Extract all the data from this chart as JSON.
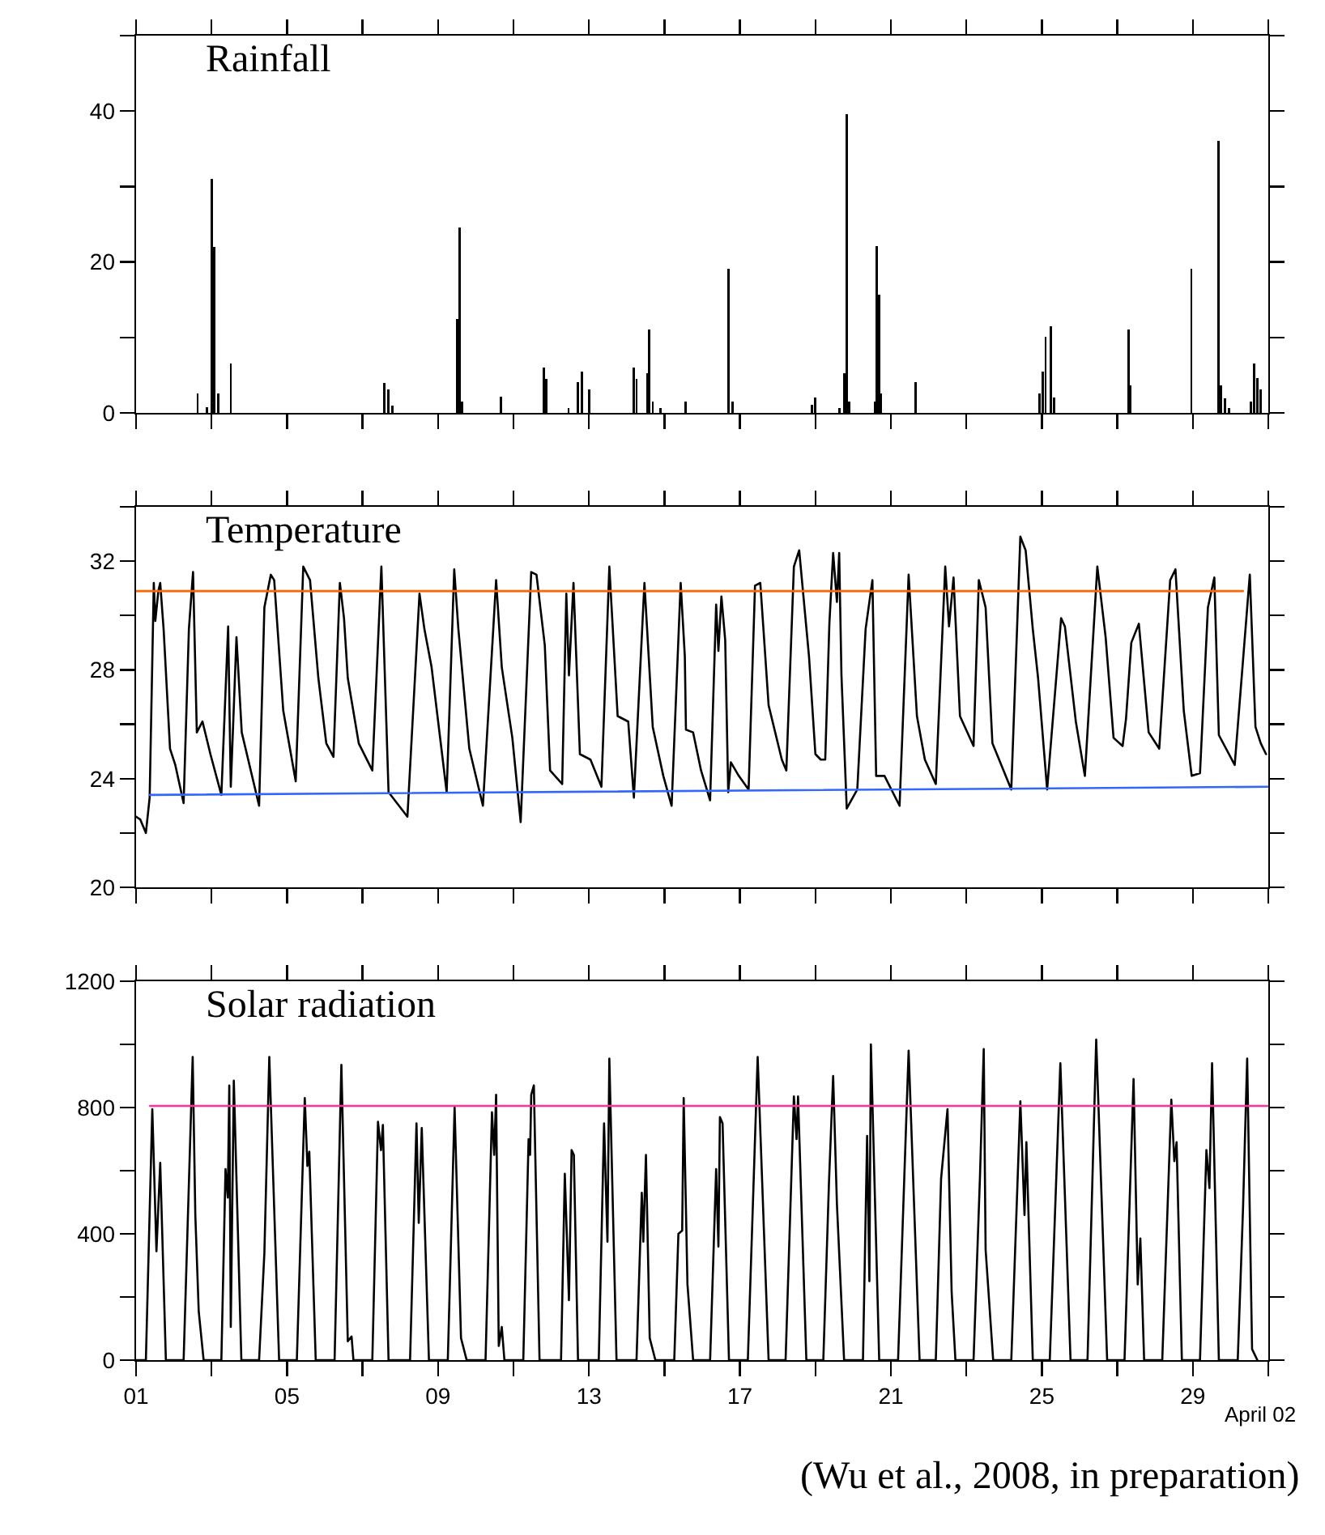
{
  "chart_data": [
    {
      "type": "bar",
      "title": "Rainfall",
      "color": "#000000",
      "x": [
        2.63,
        2.87,
        3.0,
        3.07,
        3.17,
        3.51,
        7.57,
        7.69,
        7.8,
        9.51,
        9.57,
        9.64,
        10.66,
        11.8,
        11.87,
        12.46,
        12.71,
        12.81,
        13.01,
        14.19,
        14.26,
        14.54,
        14.6,
        14.69,
        14.89,
        15.56,
        16.69,
        16.8,
        18.91,
        18.99,
        19.63,
        19.77,
        19.83,
        19.9,
        20.57,
        20.63,
        20.69,
        20.74,
        21.66,
        24.93,
        25.03,
        25.1,
        25.23,
        25.33,
        27.29,
        27.34,
        28.96,
        29.68,
        29.75,
        29.85,
        29.96,
        30.53,
        30.63,
        30.71,
        30.8
      ],
      "values": [
        2.6,
        0.7,
        31.0,
        22.0,
        2.6,
        6.5,
        4.0,
        3.1,
        1.0,
        12.5,
        24.6,
        1.5,
        2.1,
        6.0,
        4.5,
        0.6,
        4.1,
        5.5,
        3.1,
        6.0,
        4.5,
        5.3,
        11.1,
        1.5,
        0.6,
        1.5,
        19.1,
        1.5,
        1.1,
        2.0,
        0.6,
        5.3,
        39.6,
        1.5,
        1.5,
        22.1,
        15.7,
        2.6,
        4.1,
        2.6,
        5.5,
        10.1,
        11.5,
        2.0,
        11.1,
        3.6,
        19.1,
        36.0,
        3.6,
        1.9,
        0.6,
        1.5,
        6.5,
        4.6,
        3.1
      ],
      "xlim": [
        1,
        31
      ],
      "xticks": [
        {
          "value": 1,
          "label": null
        },
        {
          "value": 3,
          "label": null
        },
        {
          "value": 5,
          "label": null
        },
        {
          "value": 7,
          "label": null
        },
        {
          "value": 9,
          "label": null
        },
        {
          "value": 11,
          "label": null
        },
        {
          "value": 13,
          "label": null
        },
        {
          "value": 15,
          "label": null
        },
        {
          "value": 17,
          "label": null
        },
        {
          "value": 19,
          "label": null
        },
        {
          "value": 21,
          "label": null
        },
        {
          "value": 23,
          "label": null
        },
        {
          "value": 25,
          "label": null
        },
        {
          "value": 27,
          "label": null
        },
        {
          "value": 29,
          "label": null
        },
        {
          "value": 31,
          "label": null
        }
      ],
      "ylim": [
        0,
        50
      ],
      "yticks": [
        0,
        {
          "value": 10,
          "label": null
        },
        20,
        {
          "value": 30,
          "label": null
        },
        40,
        {
          "value": 50,
          "label": null
        }
      ],
      "tick_labels": "y"
    },
    {
      "type": "line",
      "title": "Temperature",
      "series": [
        {
          "color": "#000000",
          "x": [
            1.0,
            1.11,
            1.26,
            1.36,
            1.47,
            1.51,
            1.59,
            1.64,
            1.73,
            1.9,
            2.04,
            2.26,
            2.4,
            2.51,
            2.61,
            2.76,
            2.97,
            3.26,
            3.44,
            3.51,
            3.66,
            3.8,
            4.26,
            4.4,
            4.57,
            4.66,
            4.9,
            5.23,
            5.43,
            5.61,
            5.83,
            6.04,
            6.23,
            6.4,
            6.51,
            6.61,
            6.9,
            7.26,
            7.5,
            7.69,
            8.19,
            8.51,
            8.64,
            8.83,
            9.23,
            9.43,
            9.54,
            9.83,
            10.19,
            10.54,
            10.69,
            10.97,
            11.19,
            11.47,
            11.61,
            11.83,
            11.97,
            12.29,
            12.4,
            12.47,
            12.59,
            12.76,
            13.04,
            13.33,
            13.54,
            13.76,
            14.04,
            14.19,
            14.47,
            14.69,
            14.97,
            15.19,
            15.43,
            15.54,
            15.57,
            15.76,
            15.97,
            16.21,
            16.37,
            16.43,
            16.51,
            16.61,
            16.69,
            16.76,
            16.97,
            17.23,
            17.4,
            17.54,
            17.76,
            18.11,
            18.23,
            18.43,
            18.57,
            18.83,
            19.0,
            19.14,
            19.26,
            19.37,
            19.47,
            19.57,
            19.63,
            19.69,
            19.83,
            20.11,
            20.33,
            20.51,
            20.61,
            20.83,
            21.23,
            21.47,
            21.69,
            21.9,
            22.19,
            22.44,
            22.54,
            22.66,
            22.83,
            23.19,
            23.33,
            23.51,
            23.69,
            24.19,
            24.43,
            24.57,
            24.76,
            24.9,
            25.14,
            25.51,
            25.61,
            25.9,
            26.14,
            26.47,
            26.69,
            26.9,
            27.14,
            27.23,
            27.37,
            27.57,
            27.83,
            28.11,
            28.4,
            28.54,
            28.76,
            28.97,
            29.19,
            29.4,
            29.57,
            29.69,
            30.11,
            30.51,
            30.66,
            30.8,
            30.94
          ],
          "values": [
            22.6,
            22.5,
            22.0,
            23.3,
            31.2,
            29.8,
            30.9,
            31.2,
            29.5,
            25.1,
            24.5,
            23.1,
            29.5,
            31.6,
            25.7,
            26.1,
            24.9,
            23.4,
            29.6,
            23.7,
            29.2,
            25.7,
            23.0,
            30.3,
            31.5,
            31.3,
            26.5,
            23.9,
            31.8,
            31.3,
            27.7,
            25.3,
            24.8,
            31.2,
            29.9,
            27.7,
            25.3,
            24.3,
            31.8,
            23.5,
            22.6,
            30.8,
            29.5,
            28.1,
            23.5,
            31.7,
            29.5,
            25.1,
            23.0,
            31.3,
            28.1,
            25.5,
            22.4,
            31.6,
            31.5,
            28.9,
            24.3,
            23.8,
            30.8,
            27.8,
            31.2,
            24.9,
            24.7,
            23.7,
            31.8,
            26.3,
            26.1,
            23.3,
            31.2,
            25.9,
            24.1,
            23.0,
            31.2,
            28.5,
            25.8,
            25.7,
            24.3,
            23.2,
            30.4,
            28.7,
            30.7,
            29.1,
            23.5,
            24.6,
            24.1,
            23.6,
            31.1,
            31.2,
            26.7,
            24.7,
            24.3,
            31.8,
            32.4,
            28.5,
            24.9,
            24.7,
            24.7,
            29.7,
            32.3,
            30.5,
            32.3,
            27.8,
            22.9,
            23.6,
            29.5,
            31.3,
            24.1,
            24.1,
            23.0,
            31.5,
            26.3,
            24.7,
            23.8,
            31.8,
            29.6,
            31.4,
            26.3,
            25.2,
            31.3,
            30.3,
            25.3,
            23.6,
            32.9,
            32.4,
            29.5,
            27.7,
            23.6,
            29.9,
            29.6,
            26.1,
            24.1,
            31.8,
            29.2,
            25.5,
            25.2,
            26.2,
            29.0,
            29.7,
            25.7,
            25.1,
            31.3,
            31.7,
            26.5,
            24.1,
            24.2,
            30.3,
            31.4,
            25.6,
            24.5,
            31.5,
            25.9,
            25.3,
            24.9
          ]
        },
        {
          "color": "#ff6600",
          "x": [
            1,
            30.33
          ],
          "values": [
            30.9,
            30.9
          ]
        },
        {
          "color": "#3366ff",
          "x": [
            1.36,
            31
          ],
          "values": [
            23.4,
            23.7
          ]
        }
      ],
      "xlim": [
        1,
        31
      ],
      "xticks": [
        {
          "value": 1,
          "label": null
        },
        {
          "value": 3,
          "label": null
        },
        {
          "value": 5,
          "label": null
        },
        {
          "value": 7,
          "label": null
        },
        {
          "value": 9,
          "label": null
        },
        {
          "value": 11,
          "label": null
        },
        {
          "value": 13,
          "label": null
        },
        {
          "value": 15,
          "label": null
        },
        {
          "value": 17,
          "label": null
        },
        {
          "value": 19,
          "label": null
        },
        {
          "value": 21,
          "label": null
        },
        {
          "value": 23,
          "label": null
        },
        {
          "value": 25,
          "label": null
        },
        {
          "value": 27,
          "label": null
        },
        {
          "value": 29,
          "label": null
        },
        {
          "value": 31,
          "label": null
        }
      ],
      "ylim": [
        20,
        34
      ],
      "yticks": [
        20,
        {
          "value": 22,
          "label": null
        },
        24,
        {
          "value": 26,
          "label": null
        },
        28,
        {
          "value": 30,
          "label": null
        },
        32,
        {
          "value": 34,
          "label": null
        }
      ],
      "tick_labels": "y"
    },
    {
      "type": "line",
      "title": "Solar radiation",
      "xlabel": "April 02",
      "series": [
        {
          "color": "#000000",
          "x": [
            1.0,
            1.26,
            1.43,
            1.54,
            1.64,
            1.79,
            2.26,
            2.5,
            2.57,
            2.66,
            2.79,
            3.26,
            3.37,
            3.43,
            3.47,
            3.51,
            3.59,
            3.79,
            4.26,
            4.4,
            4.53,
            4.79,
            5.26,
            5.47,
            5.54,
            5.59,
            5.76,
            6.26,
            6.44,
            6.61,
            6.71,
            6.76,
            7.26,
            7.41,
            7.49,
            7.54,
            7.69,
            8.26,
            8.43,
            8.49,
            8.57,
            8.76,
            9.26,
            9.44,
            9.61,
            9.76,
            10.26,
            10.43,
            10.49,
            10.54,
            10.61,
            10.69,
            10.76,
            11.26,
            11.4,
            11.44,
            11.47,
            11.54,
            11.69,
            12.26,
            12.36,
            12.47,
            12.54,
            12.6,
            12.71,
            13.26,
            13.4,
            13.49,
            13.54,
            13.73,
            14.26,
            14.4,
            14.44,
            14.51,
            14.61,
            14.76,
            15.26,
            15.37,
            15.47,
            15.51,
            15.61,
            15.76,
            16.21,
            16.37,
            16.43,
            16.47,
            16.54,
            16.71,
            17.21,
            17.47,
            17.76,
            18.21,
            18.43,
            18.5,
            18.54,
            18.76,
            19.21,
            19.36,
            19.47,
            19.57,
            19.76,
            20.26,
            20.37,
            20.43,
            20.47,
            20.51,
            20.69,
            21.19,
            21.47,
            21.76,
            22.19,
            22.33,
            22.5,
            22.61,
            22.71,
            23.19,
            23.36,
            23.46,
            23.51,
            23.71,
            24.19,
            24.43,
            24.54,
            24.59,
            24.76,
            25.21,
            25.49,
            25.76,
            26.21,
            26.44,
            26.73,
            27.19,
            27.43,
            27.54,
            27.61,
            27.71,
            28.19,
            28.43,
            28.51,
            28.57,
            28.71,
            29.19,
            29.36,
            29.44,
            29.51,
            29.69,
            30.19,
            30.33,
            30.44,
            30.57,
            30.71
          ],
          "values": [
            0,
            0,
            795,
            345,
            625,
            0,
            0,
            960,
            460,
            155,
            0,
            0,
            605,
            515,
            870,
            105,
            885,
            0,
            0,
            340,
            960,
            0,
            0,
            830,
            615,
            660,
            0,
            0,
            935,
            60,
            75,
            0,
            0,
            755,
            665,
            745,
            0,
            0,
            750,
            435,
            735,
            0,
            0,
            800,
            70,
            0,
            0,
            785,
            650,
            840,
            45,
            105,
            0,
            0,
            700,
            650,
            840,
            870,
            0,
            0,
            590,
            190,
            665,
            650,
            0,
            0,
            750,
            375,
            955,
            0,
            0,
            530,
            375,
            650,
            70,
            0,
            0,
            400,
            410,
            830,
            240,
            0,
            0,
            605,
            360,
            770,
            750,
            0,
            0,
            960,
            0,
            0,
            835,
            700,
            835,
            0,
            0,
            565,
            900,
            495,
            0,
            0,
            710,
            250,
            1000,
            820,
            0,
            0,
            980,
            0,
            0,
            575,
            795,
            215,
            0,
            0,
            580,
            985,
            350,
            0,
            0,
            820,
            460,
            690,
            0,
            0,
            940,
            0,
            0,
            1015,
            0,
            0,
            890,
            240,
            385,
            0,
            0,
            825,
            630,
            690,
            0,
            0,
            665,
            545,
            940,
            0,
            0,
            480,
            955,
            35,
            0
          ]
        },
        {
          "color": "#ff3399",
          "x": [
            1.37,
            31
          ],
          "values": [
            805,
            805
          ]
        }
      ],
      "xlim": [
        1,
        31
      ],
      "xticks": [
        {
          "value": 1,
          "label": "01"
        },
        {
          "value": 3,
          "label": null
        },
        {
          "value": 5,
          "label": "05"
        },
        {
          "value": 7,
          "label": null
        },
        {
          "value": 9,
          "label": "09"
        },
        {
          "value": 11,
          "label": null
        },
        {
          "value": 13,
          "label": "13"
        },
        {
          "value": 15,
          "label": null
        },
        {
          "value": 17,
          "label": "17"
        },
        {
          "value": 19,
          "label": null
        },
        {
          "value": 21,
          "label": "21"
        },
        {
          "value": 23,
          "label": null
        },
        {
          "value": 25,
          "label": "25"
        },
        {
          "value": 27,
          "label": null
        },
        {
          "value": 29,
          "label": "29"
        },
        {
          "value": 31,
          "label": null
        }
      ],
      "ylim": [
        0,
        1200
      ],
      "yticks": [
        0,
        {
          "value": 200,
          "label": null
        },
        400,
        {
          "value": 600,
          "label": null
        },
        800,
        {
          "value": 1000,
          "label": null
        },
        1200
      ],
      "annotations": [
        "(Wu et al., 2008, in preparation)"
      ]
    }
  ]
}
